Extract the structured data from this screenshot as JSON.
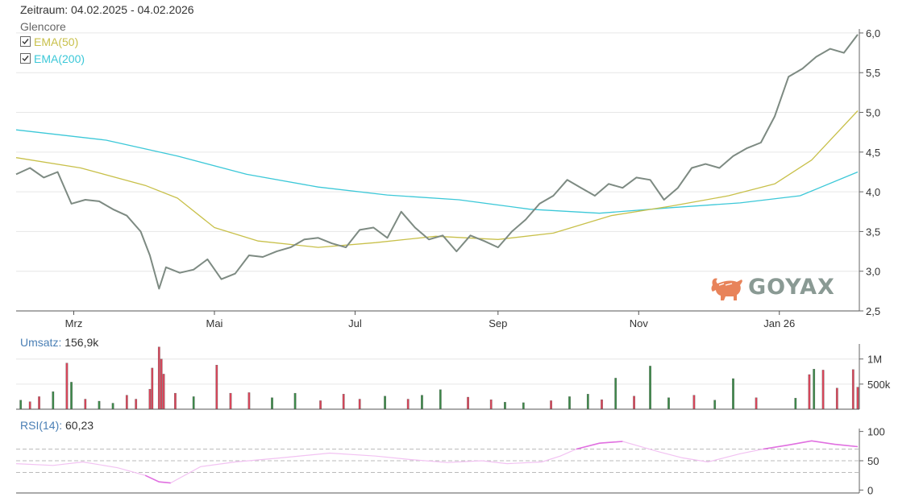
{
  "header": {
    "period_label": "Zeitraum: 04.02.2025 - 04.02.2026",
    "instrument": "Glencore",
    "legend": [
      {
        "label": "EMA(50)",
        "color": "#c8c04a",
        "checked": true
      },
      {
        "label": "EMA(200)",
        "color": "#3cc8d8",
        "checked": true
      }
    ]
  },
  "volume_panel": {
    "key": "Umsatz:",
    "value": "156,9k"
  },
  "rsi_panel": {
    "key": "RSI(14):",
    "value": "60,23"
  },
  "logo": {
    "text": "GOYAX"
  },
  "colors": {
    "price": "#7d8a82",
    "ema50": "#c8c04a",
    "ema200": "#3cc8d8",
    "vol_up": "#3d8a4a",
    "vol_down": "#d9465a",
    "rsi": "#e070e0",
    "grid": "#e6e6e6"
  },
  "chart_data": [
    {
      "type": "line",
      "title": "",
      "x_tick_labels": [
        "Mrz",
        "Mai",
        "Jul",
        "Sep",
        "Nov",
        "Jan 26"
      ],
      "x_tick_dates": [
        "2025-03-01",
        "2025-05-01",
        "2025-07-01",
        "2025-09-01",
        "2025-11-01",
        "2026-01-01"
      ],
      "y_tick_labels": [
        "2,5",
        "3,0",
        "3,5",
        "4,0",
        "4,5",
        "5,0",
        "5,5",
        "6,0"
      ],
      "y_ticks": [
        2.5,
        3.0,
        3.5,
        4.0,
        4.5,
        5.0,
        5.5,
        6.0
      ],
      "ylim": [
        2.5,
        6.05
      ],
      "xlim": [
        "2025-02-04",
        "2026-02-04"
      ],
      "grid": true,
      "series": [
        {
          "name": "Glencore",
          "color": "#7d8a82",
          "x": [
            "2025-02-04",
            "2025-02-10",
            "2025-02-16",
            "2025-02-22",
            "2025-02-28",
            "2025-03-06",
            "2025-03-12",
            "2025-03-18",
            "2025-03-24",
            "2025-03-30",
            "2025-04-03",
            "2025-04-07",
            "2025-04-10",
            "2025-04-16",
            "2025-04-22",
            "2025-04-28",
            "2025-05-04",
            "2025-05-10",
            "2025-05-16",
            "2025-05-22",
            "2025-05-28",
            "2025-06-03",
            "2025-06-09",
            "2025-06-15",
            "2025-06-21",
            "2025-06-27",
            "2025-07-03",
            "2025-07-09",
            "2025-07-15",
            "2025-07-21",
            "2025-07-27",
            "2025-08-02",
            "2025-08-08",
            "2025-08-14",
            "2025-08-20",
            "2025-08-26",
            "2025-09-01",
            "2025-09-07",
            "2025-09-13",
            "2025-09-19",
            "2025-09-25",
            "2025-10-01",
            "2025-10-07",
            "2025-10-13",
            "2025-10-19",
            "2025-10-25",
            "2025-10-31",
            "2025-11-06",
            "2025-11-12",
            "2025-11-18",
            "2025-11-24",
            "2025-11-30",
            "2025-12-06",
            "2025-12-12",
            "2025-12-18",
            "2025-12-24",
            "2025-12-30",
            "2026-01-05",
            "2026-01-11",
            "2026-01-17",
            "2026-01-23",
            "2026-01-29",
            "2026-02-04"
          ],
          "y": [
            4.22,
            4.3,
            4.18,
            4.25,
            3.85,
            3.9,
            3.88,
            3.78,
            3.7,
            3.5,
            3.2,
            2.78,
            3.05,
            2.98,
            3.02,
            3.15,
            2.9,
            2.97,
            3.2,
            3.18,
            3.25,
            3.3,
            3.4,
            3.42,
            3.35,
            3.3,
            3.52,
            3.55,
            3.42,
            3.75,
            3.55,
            3.4,
            3.45,
            3.25,
            3.45,
            3.38,
            3.3,
            3.5,
            3.65,
            3.85,
            3.95,
            4.15,
            4.05,
            3.95,
            4.1,
            4.05,
            4.18,
            4.15,
            3.9,
            4.05,
            4.3,
            4.35,
            4.3,
            4.45,
            4.55,
            4.62,
            4.95,
            5.45,
            5.55,
            5.7,
            5.8,
            5.75,
            5.98
          ]
        },
        {
          "name": "EMA(50)",
          "color": "#c8c04a",
          "x": [
            "2025-02-04",
            "2025-03-04",
            "2025-04-01",
            "2025-04-15",
            "2025-05-01",
            "2025-05-20",
            "2025-06-15",
            "2025-07-10",
            "2025-08-05",
            "2025-09-01",
            "2025-09-25",
            "2025-10-20",
            "2025-11-15",
            "2025-12-10",
            "2025-12-30",
            "2026-01-15",
            "2026-02-04"
          ],
          "y": [
            4.43,
            4.3,
            4.08,
            3.92,
            3.55,
            3.38,
            3.3,
            3.36,
            3.44,
            3.4,
            3.48,
            3.7,
            3.82,
            3.95,
            4.1,
            4.4,
            5.02
          ]
        },
        {
          "name": "EMA(200)",
          "color": "#3cc8d8",
          "x": [
            "2025-02-04",
            "2025-03-15",
            "2025-04-15",
            "2025-05-15",
            "2025-06-15",
            "2025-07-15",
            "2025-08-15",
            "2025-09-15",
            "2025-10-15",
            "2025-11-15",
            "2025-12-15",
            "2026-01-10",
            "2026-02-04"
          ],
          "y": [
            4.78,
            4.65,
            4.45,
            4.22,
            4.06,
            3.96,
            3.9,
            3.78,
            3.73,
            3.8,
            3.86,
            3.95,
            4.25
          ]
        }
      ]
    },
    {
      "type": "bar",
      "title": "Umsatz",
      "y_tick_labels": [
        "500k",
        "1M"
      ],
      "y_ticks": [
        500000,
        1000000
      ],
      "ylim": [
        0,
        1300000
      ],
      "series": [
        {
          "name": "Umsatz",
          "x": [
            "2025-02-06",
            "2025-02-10",
            "2025-02-14",
            "2025-02-20",
            "2025-02-26",
            "2025-02-28",
            "2025-03-06",
            "2025-03-12",
            "2025-03-18",
            "2025-03-24",
            "2025-03-28",
            "2025-04-03",
            "2025-04-04",
            "2025-04-07",
            "2025-04-08",
            "2025-04-09",
            "2025-04-14",
            "2025-04-22",
            "2025-05-02",
            "2025-05-08",
            "2025-05-16",
            "2025-05-26",
            "2025-06-05",
            "2025-06-16",
            "2025-06-26",
            "2025-07-03",
            "2025-07-14",
            "2025-07-24",
            "2025-07-30",
            "2025-08-07",
            "2025-08-19",
            "2025-08-29",
            "2025-09-04",
            "2025-09-12",
            "2025-09-24",
            "2025-10-02",
            "2025-10-10",
            "2025-10-16",
            "2025-10-22",
            "2025-10-30",
            "2025-11-06",
            "2025-11-14",
            "2025-11-25",
            "2025-12-04",
            "2025-12-12",
            "2025-12-22",
            "2026-01-08",
            "2026-01-14",
            "2026-01-16",
            "2026-01-20",
            "2026-01-26",
            "2026-02-02",
            "2026-02-04"
          ],
          "y": [
            180000,
            150000,
            250000,
            350000,
            920000,
            540000,
            200000,
            160000,
            120000,
            280000,
            200000,
            400000,
            820000,
            1240000,
            1000000,
            700000,
            320000,
            250000,
            880000,
            320000,
            330000,
            230000,
            320000,
            170000,
            300000,
            200000,
            260000,
            200000,
            280000,
            390000,
            240000,
            190000,
            140000,
            130000,
            170000,
            250000,
            300000,
            190000,
            620000,
            260000,
            860000,
            230000,
            280000,
            180000,
            610000,
            230000,
            220000,
            690000,
            800000,
            780000,
            420000,
            790000,
            440000
          ],
          "colors": [
            "up",
            "down",
            "down",
            "up",
            "down",
            "up",
            "down",
            "up",
            "up",
            "down",
            "down",
            "down",
            "down",
            "down",
            "down",
            "down",
            "down",
            "up",
            "down",
            "down",
            "down",
            "up",
            "up",
            "down",
            "down",
            "down",
            "up",
            "down",
            "up",
            "up",
            "down",
            "down",
            "up",
            "up",
            "down",
            "up",
            "up",
            "down",
            "up",
            "down",
            "up",
            "up",
            "down",
            "up",
            "up",
            "down",
            "up",
            "down",
            "up",
            "down",
            "down",
            "down",
            "down"
          ]
        }
      ]
    },
    {
      "type": "line",
      "title": "RSI(14)",
      "y_tick_labels": [
        "0",
        "50",
        "100"
      ],
      "y_ticks": [
        0,
        50,
        100
      ],
      "ylim": [
        -5,
        105
      ],
      "reference_lines": [
        30,
        50,
        70
      ],
      "series": [
        {
          "name": "RSI(14)",
          "color": "#e070e0",
          "x": [
            "2025-02-04",
            "2025-02-20",
            "2025-03-05",
            "2025-03-20",
            "2025-04-01",
            "2025-04-07",
            "2025-04-12",
            "2025-04-25",
            "2025-05-10",
            "2025-05-30",
            "2025-06-20",
            "2025-07-10",
            "2025-07-25",
            "2025-08-10",
            "2025-08-25",
            "2025-09-05",
            "2025-09-20",
            "2025-09-28",
            "2025-10-05",
            "2025-10-15",
            "2025-10-25",
            "2025-11-10",
            "2025-11-20",
            "2025-12-01",
            "2025-12-15",
            "2025-12-25",
            "2026-01-05",
            "2026-01-15",
            "2026-01-25",
            "2026-02-04"
          ],
          "y": [
            45,
            42,
            48,
            38,
            25,
            14,
            12,
            40,
            48,
            55,
            63,
            58,
            52,
            47,
            50,
            45,
            48,
            58,
            70,
            80,
            83,
            65,
            55,
            48,
            62,
            70,
            77,
            84,
            78,
            74
          ]
        }
      ]
    }
  ]
}
